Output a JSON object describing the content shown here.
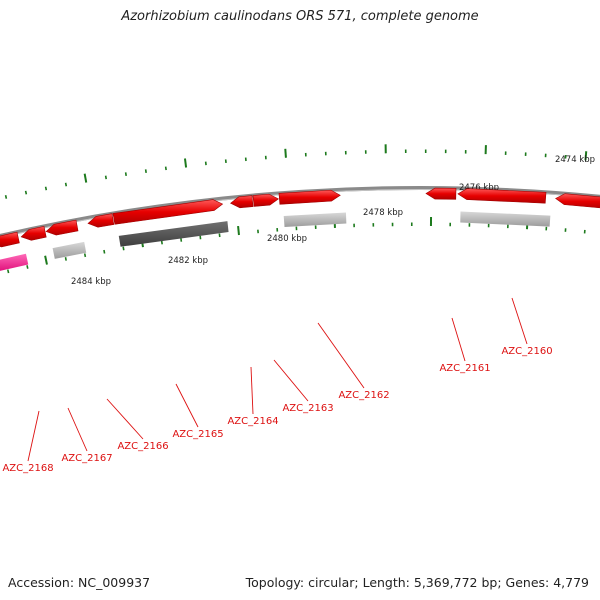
{
  "title": "Azorhizobium caulinodans ORS 571, complete genome",
  "footer": {
    "accession": "Accession: NC_009937",
    "stats": "Topology: circular; Length: 5,369,772 bp; Genes: 4,779"
  },
  "scale_labels": [
    "2474 kbp",
    "2476 kbp",
    "2478 kbp",
    "2480 kbp",
    "2482 kbp",
    "2484 kbp"
  ],
  "genes": [
    {
      "id": "AZC_2160",
      "label": "AZC_2160",
      "strand": "forward",
      "color": "red"
    },
    {
      "id": "AZC_2161",
      "label": "AZC_2161",
      "strand": "reverse",
      "color": "red"
    },
    {
      "id": "AZC_2162",
      "label": "AZC_2162",
      "strand": "forward",
      "color": "red"
    },
    {
      "id": "AZC_2163",
      "label": "AZC_2163",
      "strand": "forward",
      "color": "red"
    },
    {
      "id": "AZC_2164",
      "label": "AZC_2164",
      "strand": "reverse",
      "color": "red"
    },
    {
      "id": "AZC_2165",
      "label": "AZC_2165",
      "strand": "forward",
      "color": "red"
    },
    {
      "id": "AZC_2166",
      "label": "AZC_2166",
      "strand": "reverse",
      "color": "red"
    },
    {
      "id": "AZC_2167",
      "label": "AZC_2167",
      "strand": "reverse",
      "color": "red"
    },
    {
      "id": "AZC_2168",
      "label": "AZC_2168",
      "strand": "reverse",
      "color": "red"
    }
  ],
  "colors": {
    "backbone": "#8a8a8a",
    "gene_red": "#e30000",
    "gene_pink": "#ff2a9a",
    "tick_green": "#1d7a1d",
    "hit_light": "#b8b8b8",
    "hit_dark": "#555555",
    "label_red": "#dd1111"
  }
}
